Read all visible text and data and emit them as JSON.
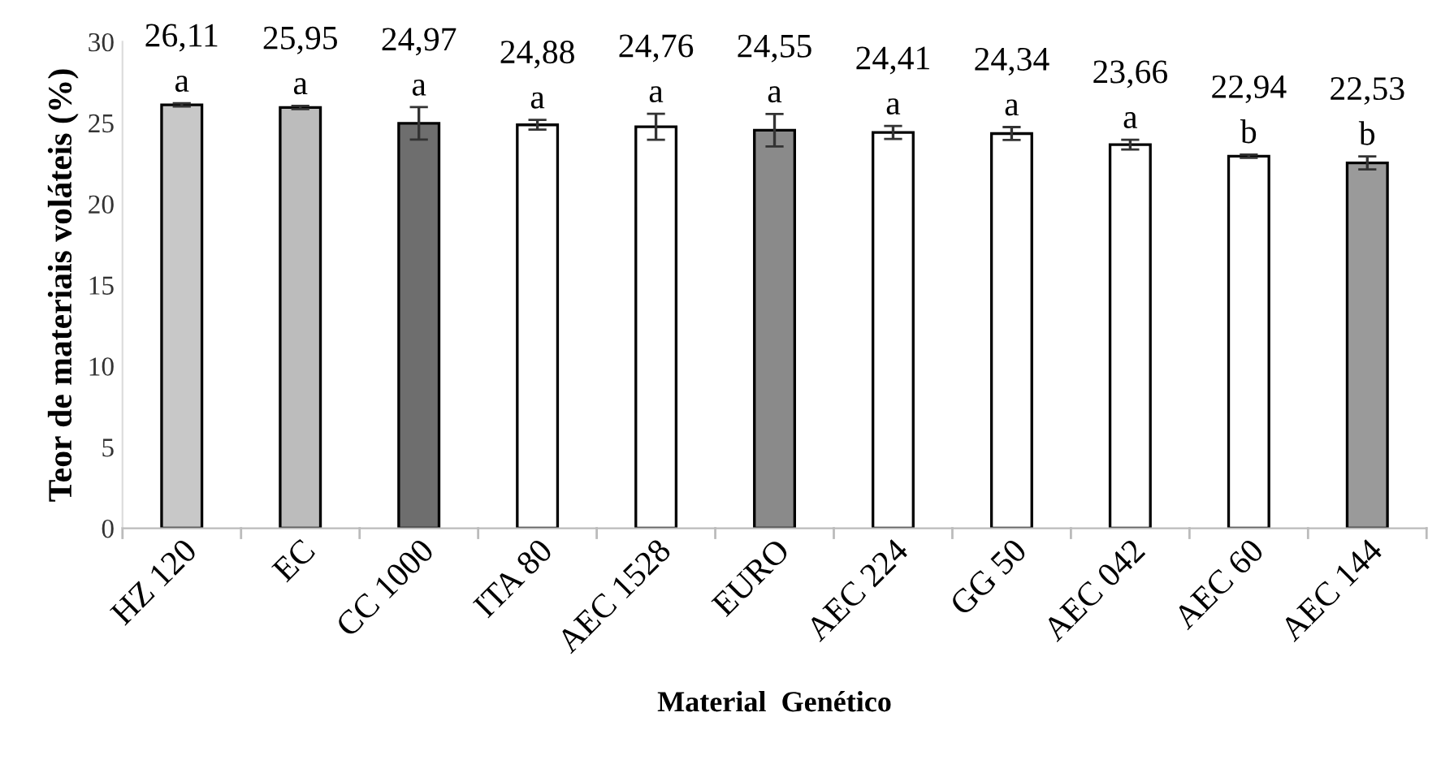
{
  "chart_data": {
    "type": "bar",
    "xlabel": "Material  Genético",
    "ylabel": "Teor de materiais voláteis (%)",
    "categories": [
      "HZ 120",
      "EC",
      "CC 1000",
      "ITA 80",
      "AEC 1528",
      "EURO",
      "AEC 224",
      "GG 50",
      "AEC 042",
      "AEC 60",
      "AEC 144"
    ],
    "values": [
      26.11,
      25.95,
      24.97,
      24.88,
      24.76,
      24.55,
      24.41,
      24.34,
      23.66,
      22.94,
      22.53
    ],
    "errors": [
      0.1,
      0.1,
      1.0,
      0.3,
      0.8,
      1.0,
      0.4,
      0.4,
      0.3,
      0.1,
      0.4
    ],
    "value_labels": [
      "26,11",
      "25,95",
      "24,97",
      "24,88",
      "24,76",
      "24,55",
      "24,41",
      "24,34",
      "23,66",
      "22,94",
      "22,53"
    ],
    "colors": [
      "#c8c8c8",
      "#bcbcbc",
      "#6e6e6e",
      "#ffffff",
      "#ffffff",
      "#8a8a8a",
      "#ffffff",
      "#ffffff",
      "#ffffff",
      "#ffffff",
      "#9a9a9a"
    ],
    "annotations": [
      {
        "text": "a",
        "x": "HZ 120",
        "y": 26.11
      },
      {
        "text": "a",
        "x": "EC",
        "y": 25.95
      },
      {
        "text": "a",
        "x": "CC 1000",
        "y": 24.97
      },
      {
        "text": "a",
        "x": "ITA 80",
        "y": 24.88
      },
      {
        "text": "a",
        "x": "AEC 1528",
        "y": 24.76
      },
      {
        "text": "a",
        "x": "EURO",
        "y": 24.55
      },
      {
        "text": "a",
        "x": "AEC 224",
        "y": 24.41
      },
      {
        "text": "a",
        "x": "GG 50",
        "y": 24.34
      },
      {
        "text": "a",
        "x": "AEC 042",
        "y": 23.66
      },
      {
        "text": "b",
        "x": "AEC 60",
        "y": 22.94
      },
      {
        "text": "b",
        "x": "AEC 144",
        "y": 22.53
      }
    ],
    "ylim": [
      0,
      30
    ],
    "yticks": [
      0,
      5,
      10,
      15,
      20,
      25,
      30
    ],
    "grid": false,
    "legend": false
  }
}
